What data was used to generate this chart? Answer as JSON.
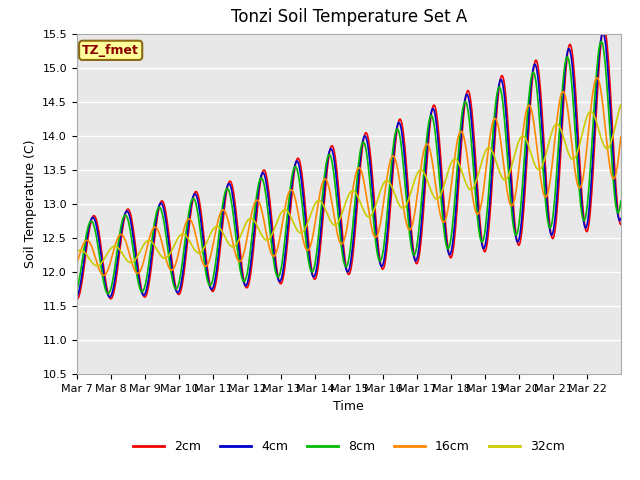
{
  "title": "Tonzi Soil Temperature Set A",
  "xlabel": "Time",
  "ylabel": "Soil Temperature (C)",
  "ylim": [
    10.5,
    15.5
  ],
  "yticks": [
    10.5,
    11.0,
    11.5,
    12.0,
    12.5,
    13.0,
    13.5,
    14.0,
    14.5,
    15.0,
    15.5
  ],
  "xtick_labels": [
    "Mar 7",
    "Mar 8",
    "Mar 9",
    "Mar 10",
    "Mar 11",
    "Mar 12",
    "Mar 13",
    "Mar 14",
    "Mar 15",
    "Mar 16",
    "Mar 17",
    "Mar 18",
    "Mar 19",
    "Mar 20",
    "Mar 21",
    "Mar 22"
  ],
  "annotation_text": "TZ_fmet",
  "annotation_color": "#8B0000",
  "annotation_bg": "#FFFF99",
  "annotation_border": "#8B6914",
  "line_colors": {
    "2cm": "#EE0000",
    "4cm": "#0000CC",
    "8cm": "#00BB00",
    "16cm": "#FF8800",
    "32cm": "#CCCC00"
  },
  "bg_color": "#E8E8E8",
  "figure_bg": "#FFFFFF",
  "grid_color": "#FFFFFF",
  "title_fontsize": 12,
  "label_fontsize": 9,
  "tick_fontsize": 8,
  "legend_fontsize": 9
}
